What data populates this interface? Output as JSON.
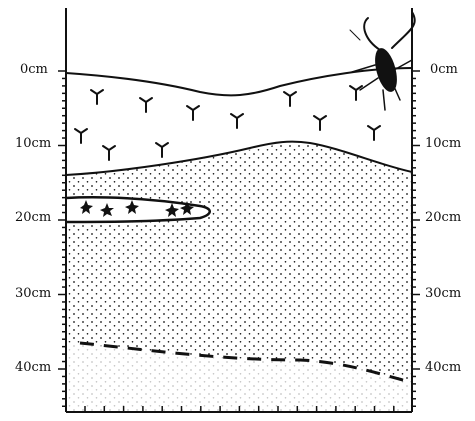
{
  "diagram": {
    "left_axis_labels": [
      {
        "text": "0cm"
      },
      {
        "text": "10cm"
      },
      {
        "text": "20cm"
      },
      {
        "text": "30cm"
      },
      {
        "text": "40cm"
      }
    ],
    "right_axis_labels": [
      {
        "text": "0cm"
      },
      {
        "text": "10cm"
      },
      {
        "text": "20cm"
      },
      {
        "text": "30cm"
      },
      {
        "text": "40cm"
      }
    ],
    "colors": {
      "ink": "#111111",
      "background": "#ffffff"
    },
    "icons": {
      "surface_insect": "mosquito-icon",
      "sprout_mark": "sprout-icon",
      "worm_mark": "star-worm-icon"
    }
  }
}
